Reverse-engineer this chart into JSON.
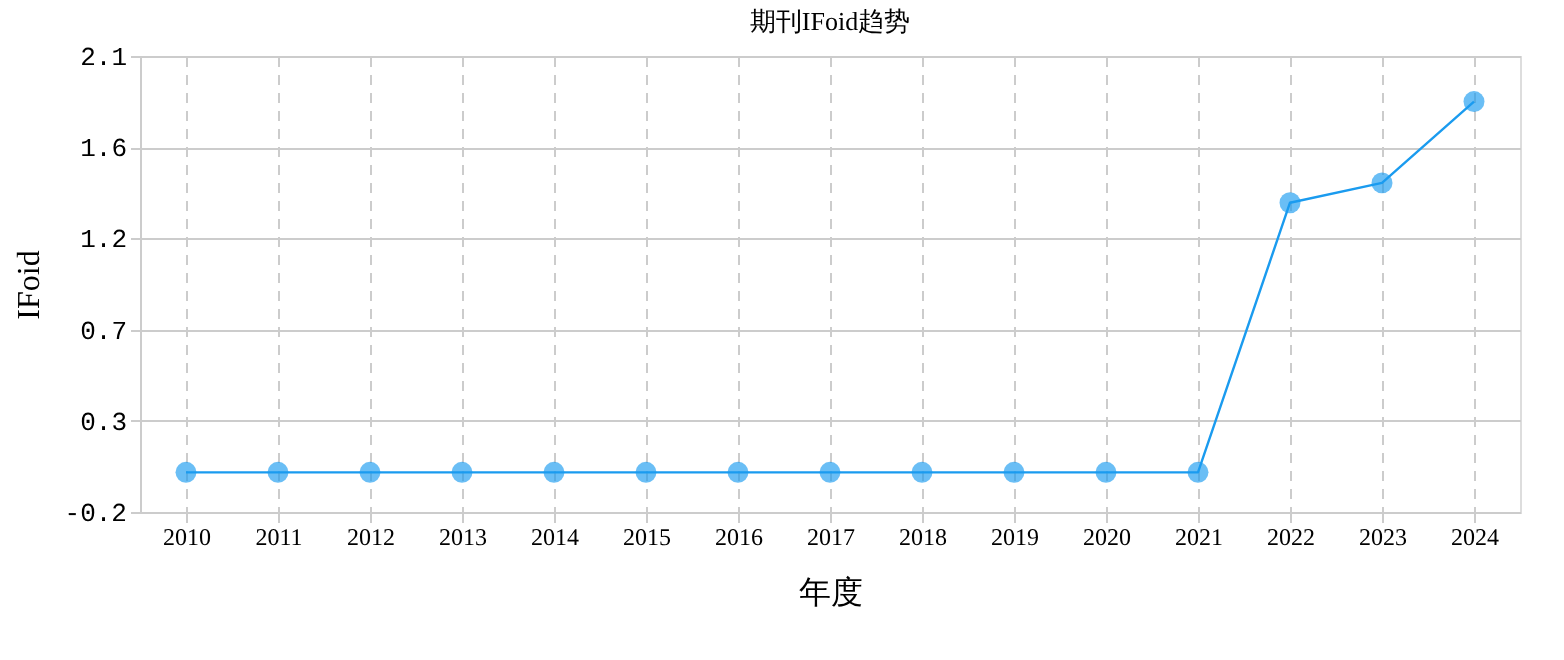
{
  "chart_data": {
    "type": "line",
    "title": "期刊IFoid趋势",
    "xlabel": "年度",
    "ylabel": "IFoid",
    "categories": [
      "2010",
      "2011",
      "2012",
      "2013",
      "2014",
      "2015",
      "2016",
      "2017",
      "2018",
      "2019",
      "2020",
      "2021",
      "2022",
      "2023",
      "2024"
    ],
    "series": [
      {
        "color": "#1a9bef",
        "values": [
          0,
          0,
          0,
          0,
          0,
          0,
          0,
          0,
          0,
          0,
          0,
          0,
          1.36,
          1.46,
          1.87
        ]
      }
    ],
    "ylim": [
      -0.2,
      2.1
    ],
    "yticks": [
      {
        "value": -0.2,
        "label": "-0.2"
      },
      {
        "value": 0.26,
        "label": "0.3"
      },
      {
        "value": 0.72,
        "label": "0.7"
      },
      {
        "value": 1.18,
        "label": "1.2"
      },
      {
        "value": 1.64,
        "label": "1.6"
      },
      {
        "value": 2.1,
        "label": "2.1"
      }
    ],
    "grid": true,
    "marker": "circle",
    "line_style": "solid"
  }
}
